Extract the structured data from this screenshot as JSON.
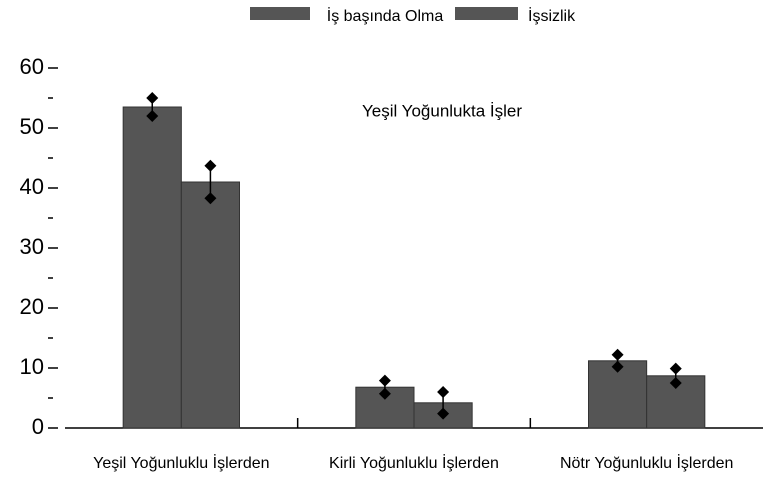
{
  "chart_data": {
    "type": "bar",
    "annotation": "Yeşil Yoğunlukta İşler",
    "categories": [
      "Yeşil Yoğunluklu İşlerden",
      "Kirli Yoğunluklu İşlerden",
      "Nötr Yoğunluklu İşlerden"
    ],
    "series": [
      {
        "name": "İş başında Olma",
        "color": "#555555",
        "values": [
          53.5,
          6.8,
          11.2
        ],
        "errors": [
          1.5,
          1.1,
          1.0
        ]
      },
      {
        "name": "İşsizlik",
        "color": "#555555",
        "values": [
          41,
          4.2,
          8.7
        ],
        "errors": [
          2.7,
          1.8,
          1.2
        ]
      }
    ],
    "ylim": [
      0,
      60
    ],
    "yticks": [
      0,
      10,
      20,
      30,
      40,
      50,
      60
    ],
    "yminor": [
      5,
      15,
      25,
      35,
      45,
      55
    ]
  }
}
